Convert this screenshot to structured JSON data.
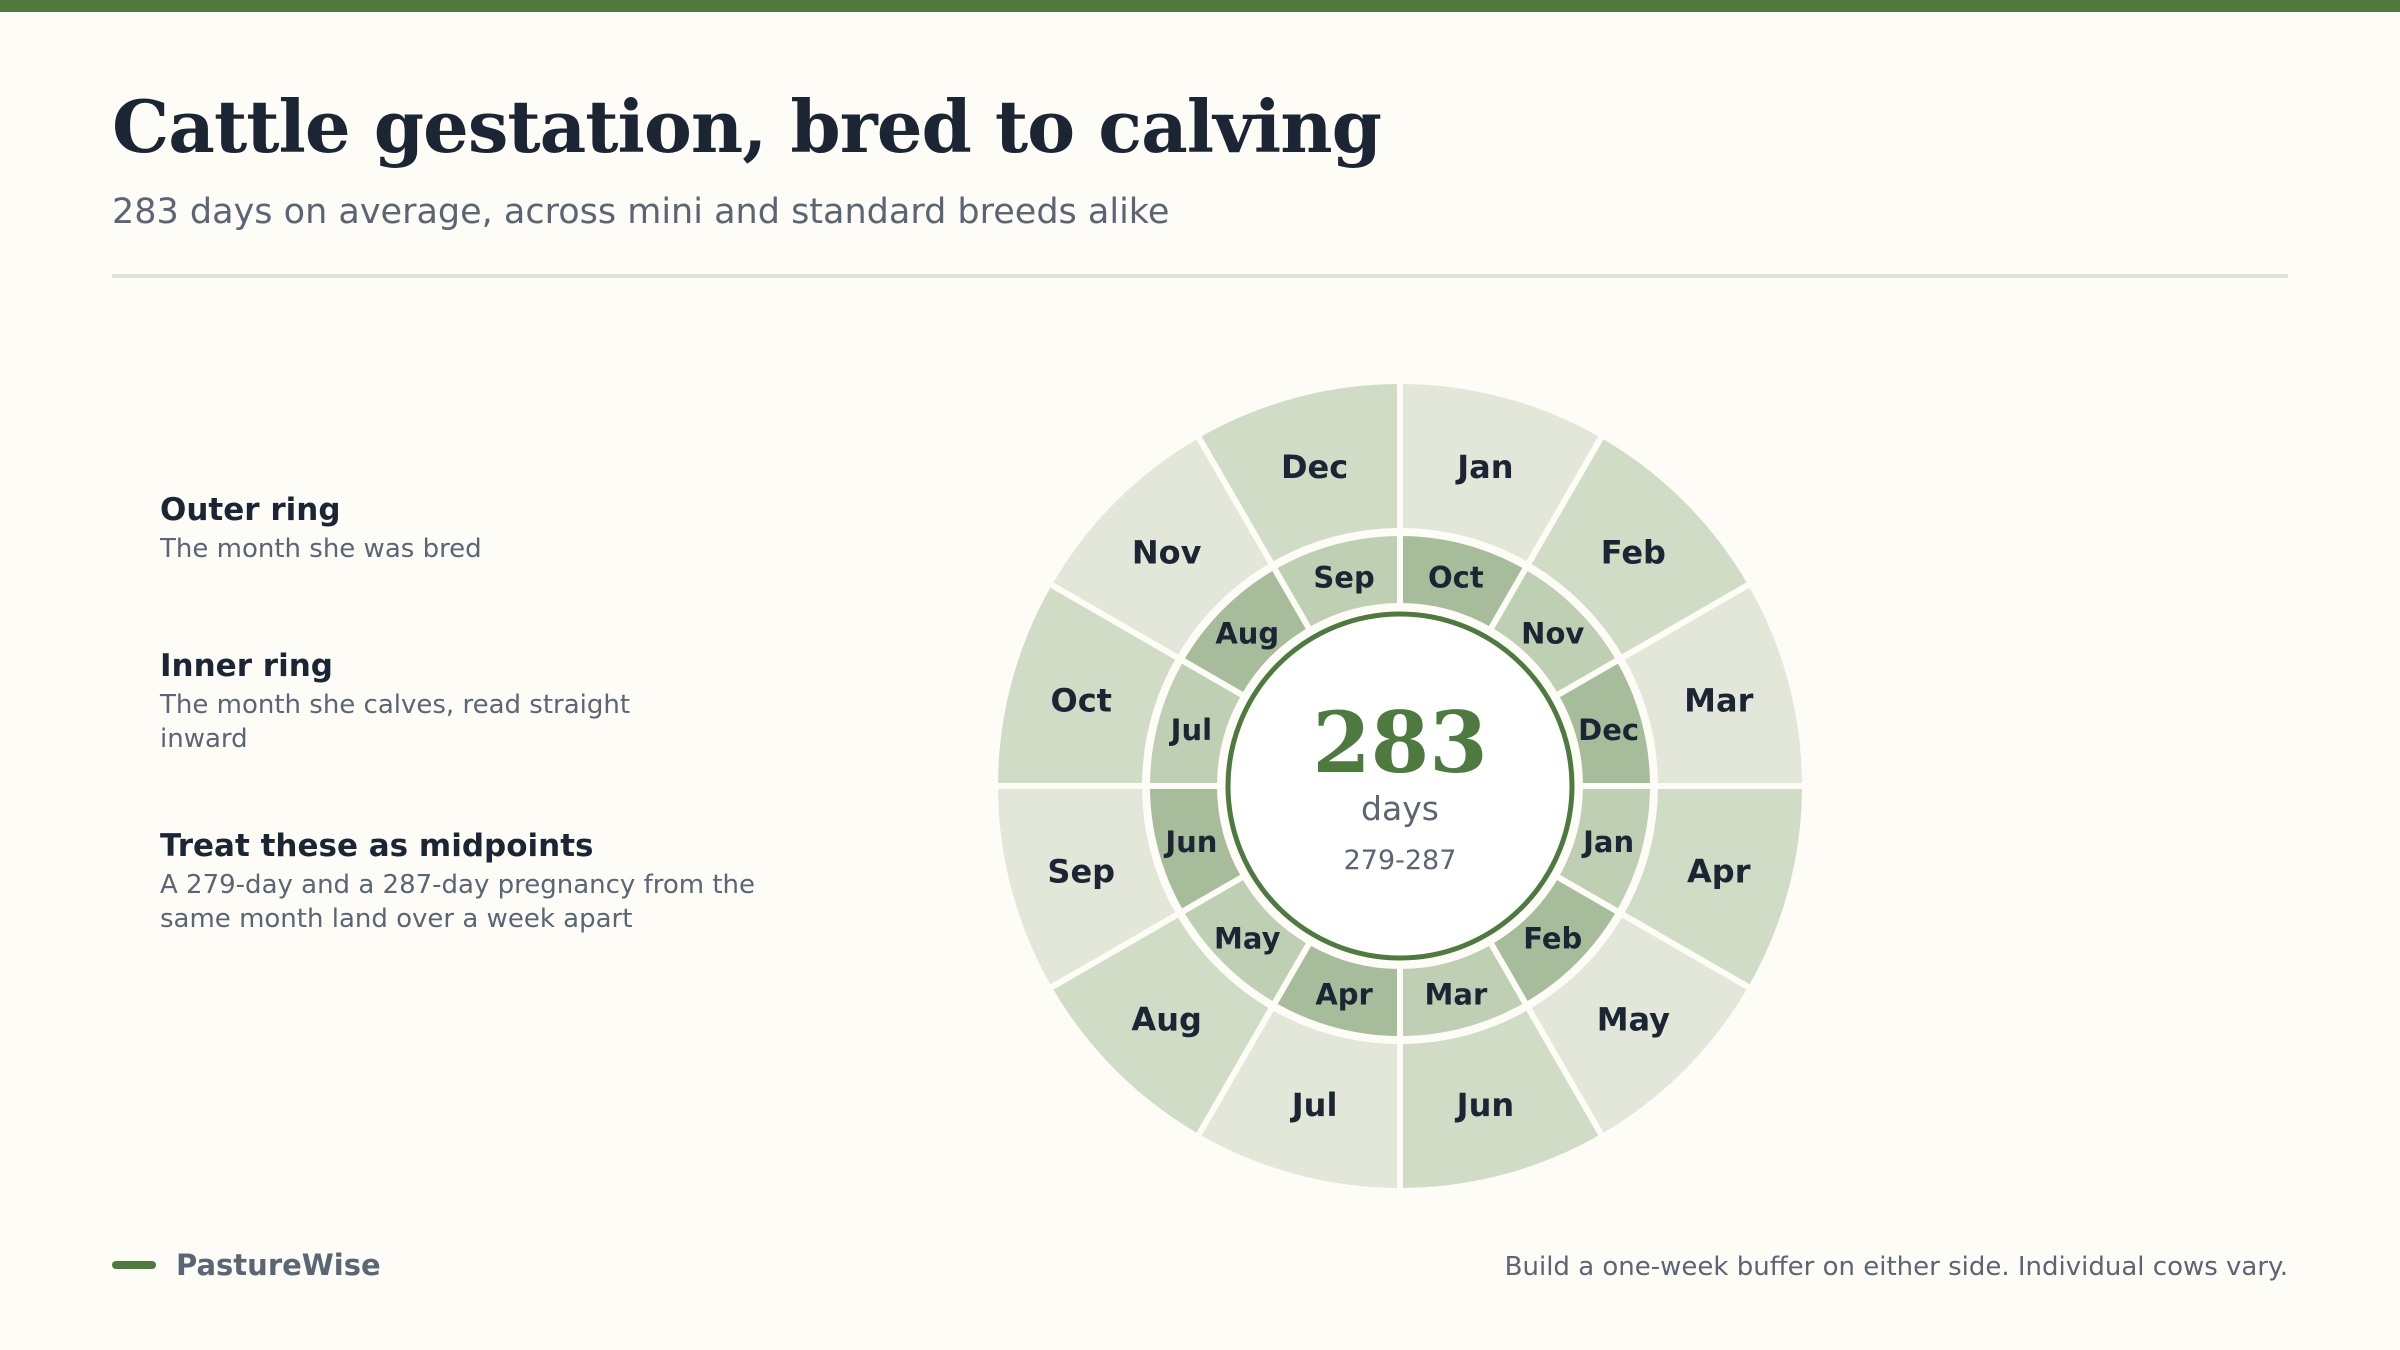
{
  "header": {
    "title": "Cattle gestation, bred to calving",
    "subtitle": "283 days on average, across mini and standard breeds alike"
  },
  "legend": {
    "items": [
      {
        "title": "Outer ring",
        "lines": [
          "The month she was bred"
        ]
      },
      {
        "title": "Inner ring",
        "lines": [
          "The month she calves, read straight",
          "inward"
        ]
      },
      {
        "title": "Treat these as midpoints",
        "lines": [
          "A 279-day and a 287-day pregnancy from the",
          "same month land over a week apart"
        ]
      }
    ]
  },
  "wheel": {
    "bred_months": [
      "Jan",
      "Feb",
      "Mar",
      "Apr",
      "May",
      "Jun",
      "Jul",
      "Aug",
      "Sep",
      "Oct",
      "Nov",
      "Dec"
    ],
    "calving_months": [
      "Oct",
      "Nov",
      "Dec",
      "Jan",
      "Feb",
      "Mar",
      "Apr",
      "May",
      "Jun",
      "Jul",
      "Aug",
      "Sep"
    ],
    "center": {
      "value": "283",
      "unit": "days",
      "range": "279-287"
    },
    "colors": {
      "outer_light": "#e3e7da",
      "outer_mid": "#d1dcc7",
      "inner_light": "#bfcfb3",
      "inner_dark": "#a6bc9a",
      "accent": "#4f7a3f"
    }
  },
  "footer": {
    "brand": "PastureWise",
    "note": "Build a one-week buffer on either side. Individual cows vary."
  }
}
